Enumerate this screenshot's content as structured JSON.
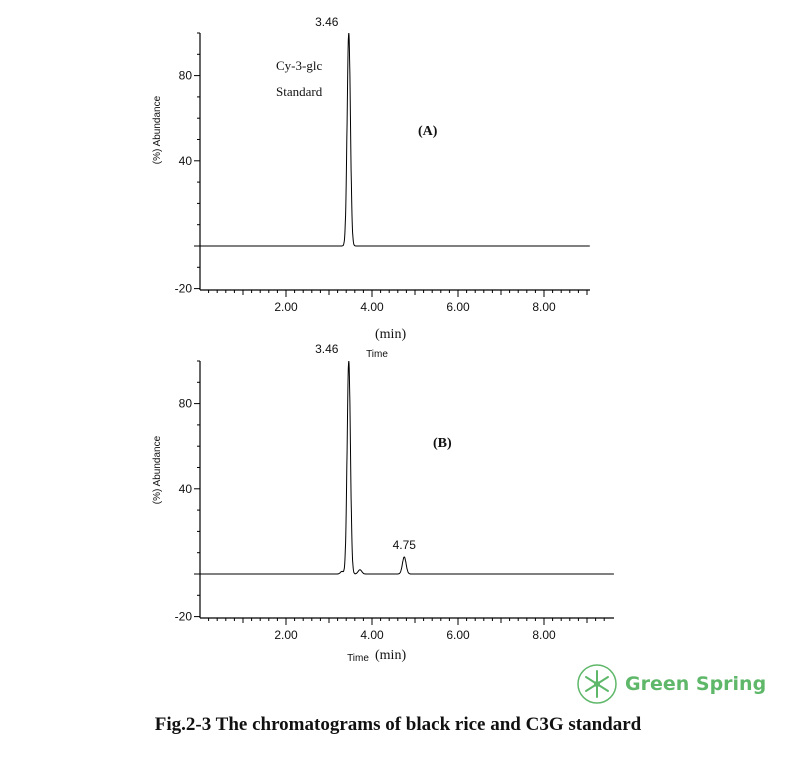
{
  "chart_data": [
    {
      "type": "line",
      "panel_label": "(A)",
      "annotation_lines": [
        "Cy-3-glc",
        "Standard"
      ],
      "xlabel_word": "Time",
      "xlabel_unit": "(min)",
      "ylabel_unit": "(%)",
      "ylabel_word": "Abundance",
      "xlim": [
        0,
        9.4
      ],
      "ylim": [
        -20,
        100
      ],
      "x_ticks": [
        "2.00",
        "4.00",
        "6.00",
        "8.00"
      ],
      "y_ticks": [
        "80",
        "40",
        "-20"
      ],
      "baseline": 0,
      "peaks": [
        {
          "x": 3.46,
          "y": 100,
          "label": "3.46"
        }
      ]
    },
    {
      "type": "line",
      "panel_label": "(B)",
      "xlabel_word": "Time",
      "xlabel_unit": "(min)",
      "ylabel_unit": "(%)",
      "ylabel_word": "Abundance",
      "xlim": [
        0,
        9.4
      ],
      "ylim": [
        -20,
        100
      ],
      "x_ticks": [
        "2.00",
        "4.00",
        "6.00",
        "8.00"
      ],
      "y_ticks": [
        "80",
        "40",
        "-20"
      ],
      "baseline": 0,
      "peaks": [
        {
          "x": 3.46,
          "y": 100,
          "label": "3.46"
        },
        {
          "x": 3.72,
          "y": 2,
          "label": ""
        },
        {
          "x": 4.75,
          "y": 8,
          "label": "4.75"
        }
      ]
    }
  ],
  "caption": "Fig.2-3    The chromatograms of black rice and C3G standard",
  "logo": {
    "text": "Green Spring",
    "color": "#5fb86a"
  }
}
